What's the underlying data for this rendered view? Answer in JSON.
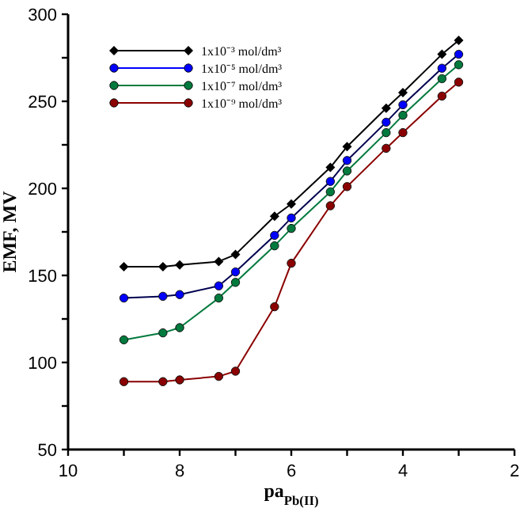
{
  "chart_data": {
    "type": "line",
    "xlabel": "pa$_{Pb(II)}$",
    "ylabel": "EMF, MV",
    "x": [
      9,
      8.3,
      8,
      7.3,
      7,
      6.3,
      6,
      5.3,
      5,
      4.3,
      4,
      3.3,
      3
    ],
    "xlim": [
      10,
      2
    ],
    "xticks": [
      10,
      {
        "value": 9,
        "label": null
      },
      8,
      {
        "value": 7,
        "label": null
      },
      6,
      {
        "value": 5,
        "label": null
      },
      4,
      {
        "value": 3,
        "label": null
      },
      2
    ],
    "ylim": [
      50,
      300
    ],
    "yticks": [
      50,
      {
        "value": 75,
        "label": null
      },
      100,
      {
        "value": 125,
        "label": null
      },
      150,
      {
        "value": 175,
        "label": null
      },
      200,
      {
        "value": 225,
        "label": null
      },
      250,
      {
        "value": 275,
        "label": null
      },
      300
    ],
    "grid": false,
    "legend": "top left",
    "series": [
      {
        "name": "1x10⁻³ mol/dm³",
        "color": "#000000",
        "marker": "diamond",
        "values": [
          155,
          155,
          156,
          158,
          162,
          184,
          191,
          212,
          224,
          246,
          255,
          277,
          285
        ]
      },
      {
        "name": "1x10⁻⁵ mol/dm³",
        "color": "#0000ff",
        "marker": "circle",
        "values": [
          137,
          138,
          139,
          144,
          152,
          173,
          183,
          204,
          216,
          238,
          248,
          269,
          277
        ]
      },
      {
        "name": "1x10⁻⁷ mol/dm³",
        "color": "#007a3d",
        "marker": "circle",
        "values": [
          113,
          117,
          120,
          137,
          146,
          167,
          177,
          198,
          210,
          232,
          242,
          263,
          271
        ]
      },
      {
        "name": "1x10⁻⁹ mol/dm³",
        "color": "#8b0000",
        "marker": "circle",
        "values": [
          89,
          89,
          90,
          92,
          95,
          132,
          157,
          190,
          201,
          223,
          232,
          253,
          261
        ]
      }
    ]
  }
}
